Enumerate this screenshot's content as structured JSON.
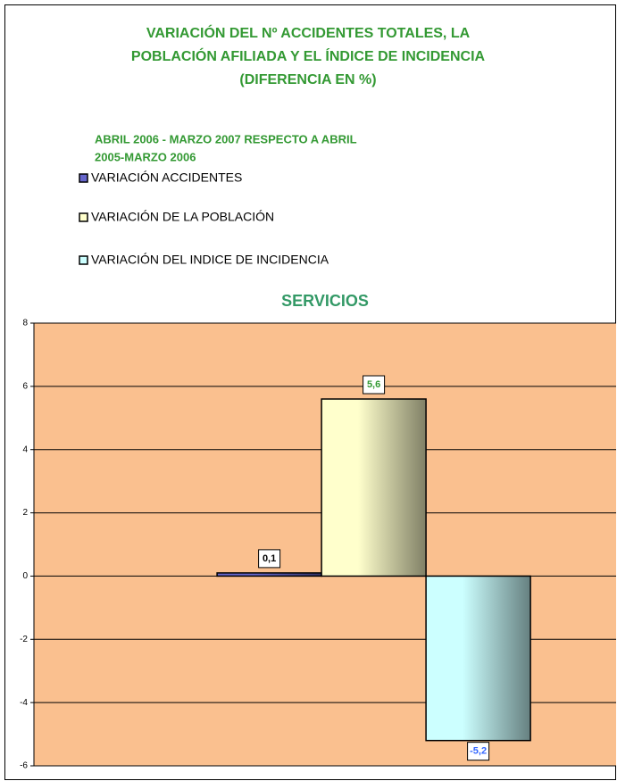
{
  "chart_data": {
    "type": "bar",
    "title": [
      "VARIACIÓN DEL Nº ACCIDENTES TOTALES, LA",
      "POBLACIÓN AFILIADA Y EL ÍNDICE DE INCIDENCIA",
      "(DIFERENCIA EN %)"
    ],
    "subtitle": [
      "ABRIL 2006 - MARZO 2007 RESPECTO A ABRIL",
      "2005-MARZO 2006"
    ],
    "chart_title": "SERVICIOS",
    "categories": [
      null
    ],
    "series": [
      {
        "name": "VARIACIÓN ACCIDENTES",
        "color": "#6666cc",
        "values": [
          0.1
        ],
        "value_labels": [
          "0,1"
        ],
        "label_color": "#000000"
      },
      {
        "name": "VARIACIÓN DE LA POBLACIÓN",
        "color": "#ffffcc",
        "values": [
          5.6
        ],
        "value_labels": [
          "5,6"
        ],
        "label_color": "#339933"
      },
      {
        "name": "VARIACIÓN DEL INDICE DE INCIDENCIA",
        "color": "#ccffff",
        "values": [
          -5.2
        ],
        "value_labels": [
          "-5,2"
        ],
        "label_color": "#3366ff"
      }
    ],
    "ylim": [
      -6,
      8
    ],
    "yticks": [
      -6,
      -4,
      -2,
      0,
      2,
      4,
      6,
      8
    ],
    "grid": true,
    "plot_background": "#fac08f"
  }
}
